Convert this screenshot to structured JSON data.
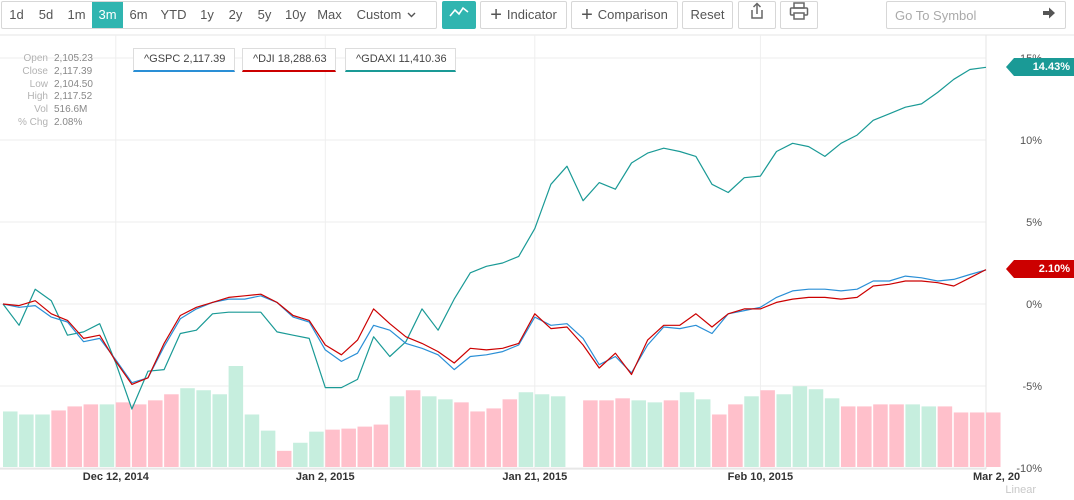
{
  "toolbar": {
    "ranges": [
      "1d",
      "5d",
      "1m",
      "3m",
      "6m",
      "YTD",
      "1y",
      "2y",
      "5y",
      "10y",
      "Max",
      "Custom"
    ],
    "active_range": "3m",
    "chart_type_icon": "line-chart-icon",
    "indicator_label": "Indicator",
    "comparison_label": "Comparison",
    "reset_label": "Reset",
    "share_icon": "share-icon",
    "print_icon": "print-icon",
    "search_placeholder": "Go To Symbol",
    "go_icon": "arrow-right-icon"
  },
  "ohlc": {
    "open_label": "Open",
    "open": "2,105.23",
    "close_label": "Close",
    "close": "2,117.39",
    "low_label": "Low",
    "low": "2,104.50",
    "high_label": "High",
    "high": "2,117.52",
    "vol_label": "Vol",
    "vol": "516.6M",
    "chg_label": "% Chg",
    "chg": "2.08%"
  },
  "legend": [
    {
      "text": "^GSPC 2,117.39",
      "color": "#2a8fd6"
    },
    {
      "text": "^DJI 18,288.63",
      "color": "#cc0000"
    },
    {
      "text": "^GDAXI 11,410.36",
      "color": "#1a9a96"
    }
  ],
  "last_labels": {
    "gdaxi": "14.43%",
    "dji": "2.10%"
  },
  "scale_mode": "Linear",
  "colors": {
    "accent": "#30b5b0",
    "gspc": "#2a8fd6",
    "dji": "#cc0000",
    "gdaxi": "#1a9a96",
    "vol_up": "#c6eede",
    "vol_down": "#ffc0cb"
  },
  "chart_data": {
    "type": "line",
    "x_tick_labels": [
      "Dec 12, 2014",
      "Jan 2, 2015",
      "Jan 21, 2015",
      "Feb 10, 2015",
      "Mar 2, 20"
    ],
    "x_tick_index": [
      7,
      20,
      33,
      47,
      61
    ],
    "y_tick_labels": [
      "15%",
      "10%",
      "5%",
      "0%",
      "-5%",
      "-10%"
    ],
    "y_tick_values": [
      15,
      10,
      5,
      0,
      -5,
      -10
    ],
    "ylim": [
      -10,
      15
    ],
    "grid": true,
    "series": [
      {
        "name": "^GDAXI",
        "values": [
          0.0,
          -1.3,
          0.9,
          0.2,
          -1.9,
          -1.7,
          -1.2,
          -3.6,
          -6.4,
          -4.1,
          -4.0,
          -1.8,
          -1.6,
          -0.6,
          -0.5,
          -0.5,
          -0.5,
          -1.7,
          -1.9,
          -2.1,
          -5.1,
          -5.1,
          -4.6,
          -2.0,
          -3.2,
          -2.3,
          -0.3,
          -1.6,
          0.3,
          1.9,
          2.3,
          2.5,
          2.9,
          4.6,
          7.3,
          8.4,
          6.3,
          7.4,
          7.0,
          8.6,
          9.2,
          9.5,
          9.3,
          9.0,
          7.3,
          6.8,
          7.7,
          7.8,
          9.3,
          9.8,
          9.6,
          9.0,
          9.8,
          10.3,
          11.2,
          11.6,
          12.0,
          12.2,
          12.9,
          13.7,
          14.3,
          14.43
        ]
      },
      {
        "name": "^GSPC",
        "values": [
          0.0,
          -0.2,
          -0.1,
          -0.8,
          -1.1,
          -2.3,
          -2.1,
          -3.4,
          -4.8,
          -4.5,
          -2.6,
          -0.9,
          -0.3,
          0.1,
          0.3,
          0.3,
          0.5,
          0.1,
          -0.8,
          -1.1,
          -2.8,
          -3.5,
          -3.0,
          -1.3,
          -1.6,
          -2.4,
          -2.7,
          -3.1,
          -4.0,
          -3.2,
          -3.1,
          -2.9,
          -2.5,
          -0.8,
          -1.3,
          -1.2,
          -2.1,
          -3.7,
          -3.2,
          -4.2,
          -2.5,
          -1.4,
          -1.5,
          -1.3,
          -1.8,
          -0.6,
          -0.4,
          -0.2,
          0.4,
          0.8,
          0.9,
          0.9,
          0.8,
          0.9,
          1.4,
          1.4,
          1.7,
          1.6,
          1.4,
          1.5,
          1.8,
          2.08
        ]
      },
      {
        "name": "^DJI",
        "values": [
          0.0,
          -0.1,
          0.2,
          -0.6,
          -1.0,
          -2.1,
          -1.9,
          -3.5,
          -4.9,
          -4.5,
          -2.4,
          -0.7,
          -0.2,
          0.1,
          0.4,
          0.5,
          0.6,
          0.1,
          -0.7,
          -1.0,
          -2.5,
          -3.1,
          -2.2,
          -0.3,
          -1.2,
          -2.0,
          -2.4,
          -2.9,
          -3.6,
          -2.7,
          -2.8,
          -2.7,
          -2.4,
          -0.6,
          -1.5,
          -1.4,
          -2.5,
          -3.9,
          -3.0,
          -4.3,
          -2.2,
          -1.3,
          -1.3,
          -0.6,
          -1.4,
          -0.6,
          -0.3,
          -0.3,
          0.1,
          0.3,
          0.4,
          0.4,
          0.3,
          0.4,
          1.1,
          1.2,
          1.4,
          1.4,
          1.3,
          1.1,
          1.6,
          2.1
        ]
      }
    ],
    "volume_relative": [
      0.55,
      0.52,
      0.52,
      0.56,
      0.6,
      0.62,
      0.62,
      0.64,
      0.62,
      0.66,
      0.72,
      0.78,
      0.76,
      0.72,
      1.0,
      0.52,
      0.36,
      0.16,
      0.24,
      0.35,
      0.37,
      0.38,
      0.4,
      0.42,
      0.7,
      0.76,
      0.7,
      0.67,
      0.64,
      0.55,
      0.58,
      0.67,
      0.74,
      0.72,
      0.7,
      0.0,
      0.66,
      0.66,
      0.68,
      0.66,
      0.64,
      0.66,
      0.74,
      0.67,
      0.52,
      0.62,
      0.7,
      0.76,
      0.72,
      0.8,
      0.77,
      0.68,
      0.6,
      0.6,
      0.62,
      0.62,
      0.62,
      0.6,
      0.6,
      0.54,
      0.54,
      0.54
    ],
    "volume_up": [
      true,
      true,
      true,
      false,
      false,
      false,
      true,
      false,
      false,
      false,
      false,
      true,
      true,
      true,
      true,
      true,
      true,
      false,
      true,
      true,
      false,
      false,
      false,
      false,
      true,
      false,
      true,
      true,
      false,
      false,
      false,
      false,
      true,
      true,
      true,
      false,
      false,
      false,
      false,
      true,
      true,
      false,
      true,
      true,
      false,
      false,
      true,
      false,
      true,
      true,
      true,
      true,
      false,
      false,
      false,
      false,
      true,
      true,
      false,
      false,
      false,
      false
    ]
  }
}
